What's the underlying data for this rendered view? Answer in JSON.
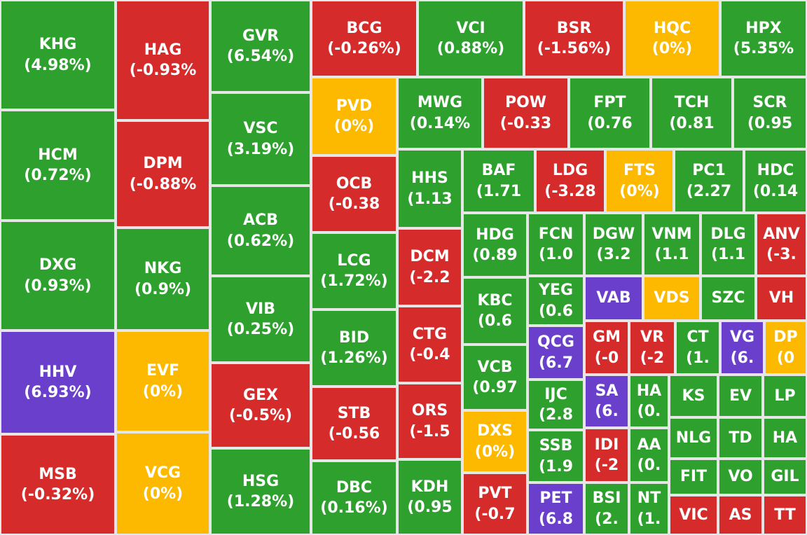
{
  "colors": {
    "up": "#2ea02e",
    "down": "#d62b2b",
    "flat": "#fcb900",
    "ceiling": "#6a3fcc"
  },
  "chart_data": {
    "type": "treemap",
    "items": [
      {
        "ticker": "KHG",
        "label": "(4.98%)",
        "change": 4.98,
        "status": "up"
      },
      {
        "ticker": "HCM",
        "label": "(0.72%)",
        "change": 0.72,
        "status": "up"
      },
      {
        "ticker": "DXG",
        "label": "(0.93%)",
        "change": 0.93,
        "status": "up"
      },
      {
        "ticker": "HHV",
        "label": "(6.93%)",
        "change": 6.93,
        "status": "ceiling"
      },
      {
        "ticker": "MSB",
        "label": "(-0.32%)",
        "change": -0.32,
        "status": "down"
      },
      {
        "ticker": "HAG",
        "label": "(-0.93%",
        "change": -0.93,
        "status": "down"
      },
      {
        "ticker": "DPM",
        "label": "(-0.88%",
        "change": -0.88,
        "status": "down"
      },
      {
        "ticker": "NKG",
        "label": "(0.9%)",
        "change": 0.9,
        "status": "up"
      },
      {
        "ticker": "EVF",
        "label": "(0%)",
        "change": 0,
        "status": "flat"
      },
      {
        "ticker": "VCG",
        "label": "(0%)",
        "change": 0,
        "status": "flat"
      },
      {
        "ticker": "GVR",
        "label": "(6.54%)",
        "change": 6.54,
        "status": "up"
      },
      {
        "ticker": "VSC",
        "label": "(3.19%)",
        "change": 3.19,
        "status": "up"
      },
      {
        "ticker": "ACB",
        "label": "(0.62%)",
        "change": 0.62,
        "status": "up"
      },
      {
        "ticker": "VIB",
        "label": "(0.25%)",
        "change": 0.25,
        "status": "up"
      },
      {
        "ticker": "GEX",
        "label": "(-0.5%)",
        "change": -0.5,
        "status": "down"
      },
      {
        "ticker": "HSG",
        "label": "(1.28%)",
        "change": 1.28,
        "status": "up"
      },
      {
        "ticker": "BCG",
        "label": "(-0.26%)",
        "change": -0.26,
        "status": "down"
      },
      {
        "ticker": "VCI",
        "label": "(0.88%)",
        "change": 0.88,
        "status": "up"
      },
      {
        "ticker": "BSR",
        "label": "(-1.56%)",
        "change": -1.56,
        "status": "down"
      },
      {
        "ticker": "HQC",
        "label": "(0%)",
        "change": 0,
        "status": "flat"
      },
      {
        "ticker": "HPX",
        "label": "(5.35%",
        "change": 5.35,
        "status": "up"
      },
      {
        "ticker": "PVD",
        "label": "(0%)",
        "change": 0,
        "status": "flat"
      },
      {
        "ticker": "OCB",
        "label": "(-0.38",
        "change": -0.38,
        "status": "down"
      },
      {
        "ticker": "LCG",
        "label": "(1.72%)",
        "change": 1.72,
        "status": "up"
      },
      {
        "ticker": "BID",
        "label": "(1.26%)",
        "change": 1.26,
        "status": "up"
      },
      {
        "ticker": "STB",
        "label": "(-0.56",
        "change": -0.56,
        "status": "down"
      },
      {
        "ticker": "DBC",
        "label": "(0.16%)",
        "change": 0.16,
        "status": "up"
      },
      {
        "ticker": "MWG",
        "label": "(0.14%",
        "change": 0.14,
        "status": "up"
      },
      {
        "ticker": "POW",
        "label": "(-0.33",
        "change": -0.33,
        "status": "down"
      },
      {
        "ticker": "FPT",
        "label": "(0.76",
        "change": 0.76,
        "status": "up"
      },
      {
        "ticker": "TCH",
        "label": "(0.81",
        "change": 0.81,
        "status": "up"
      },
      {
        "ticker": "SCR",
        "label": "(0.95",
        "change": 0.95,
        "status": "up"
      },
      {
        "ticker": "HHS",
        "label": "(1.13",
        "change": 1.13,
        "status": "up"
      },
      {
        "ticker": "DCM",
        "label": "(-2.2",
        "change": -2.2,
        "status": "down"
      },
      {
        "ticker": "CTG",
        "label": "(-0.4",
        "change": -0.4,
        "status": "down"
      },
      {
        "ticker": "ORS",
        "label": "(-1.5",
        "change": -1.5,
        "status": "down"
      },
      {
        "ticker": "KDH",
        "label": "(0.95",
        "change": 0.95,
        "status": "up"
      },
      {
        "ticker": "BAF",
        "label": "(1.71",
        "change": 1.71,
        "status": "up"
      },
      {
        "ticker": "LDG",
        "label": "(-3.28",
        "change": -3.28,
        "status": "down"
      },
      {
        "ticker": "FTS",
        "label": "(0%)",
        "change": 0,
        "status": "flat"
      },
      {
        "ticker": "PC1",
        "label": "(2.27",
        "change": 2.27,
        "status": "up"
      },
      {
        "ticker": "HDC",
        "label": "(0.14",
        "change": 0.14,
        "status": "up"
      },
      {
        "ticker": "HDG",
        "label": "(0.89",
        "change": 0.89,
        "status": "up"
      },
      {
        "ticker": "KBC",
        "label": "(0.6",
        "change": 0.6,
        "status": "up"
      },
      {
        "ticker": "VCB",
        "label": "(0.97",
        "change": 0.97,
        "status": "up"
      },
      {
        "ticker": "DXS",
        "label": "(0%)",
        "change": 0,
        "status": "flat"
      },
      {
        "ticker": "PVT",
        "label": "(-0.7",
        "change": -0.7,
        "status": "down"
      },
      {
        "ticker": "FCN",
        "label": "(1.0",
        "change": 1.0,
        "status": "up"
      },
      {
        "ticker": "DGW",
        "label": "(3.2",
        "change": 3.2,
        "status": "up"
      },
      {
        "ticker": "VNM",
        "label": "(1.1",
        "change": 1.1,
        "status": "up"
      },
      {
        "ticker": "DLG",
        "label": "(1.1",
        "change": 1.1,
        "status": "up"
      },
      {
        "ticker": "ANV",
        "label": "(-3.",
        "change": -3,
        "status": "down"
      },
      {
        "ticker": "YEG",
        "label": "(0.6",
        "change": 0.6,
        "status": "up"
      },
      {
        "ticker": "VAB",
        "label": "",
        "status": "ceiling"
      },
      {
        "ticker": "VDS",
        "label": "",
        "status": "flat"
      },
      {
        "ticker": "SZC",
        "label": "",
        "status": "up"
      },
      {
        "ticker": "VH",
        "label": "",
        "status": "down"
      },
      {
        "ticker": "QCG",
        "label": "(6.7",
        "change": 6.7,
        "status": "ceiling"
      },
      {
        "ticker": "GM",
        "label": "(-0",
        "change": 0,
        "status": "down"
      },
      {
        "ticker": "VR",
        "label": "(-2",
        "change": -2,
        "status": "down"
      },
      {
        "ticker": "CT",
        "label": "(1.",
        "change": 1,
        "status": "up"
      },
      {
        "ticker": "VG",
        "label": "(6.",
        "change": 6,
        "status": "ceiling"
      },
      {
        "ticker": "DP",
        "label": "(0",
        "change": 0,
        "status": "flat"
      },
      {
        "ticker": "IJC",
        "label": "(2.8",
        "change": 2.8,
        "status": "up"
      },
      {
        "ticker": "SA",
        "label": "(6.",
        "change": 6,
        "status": "ceiling"
      },
      {
        "ticker": "HA",
        "label": "(0.",
        "change": 0,
        "status": "up"
      },
      {
        "ticker": "KS",
        "label": "",
        "status": "up"
      },
      {
        "ticker": "EV",
        "label": "",
        "status": "up"
      },
      {
        "ticker": "LP",
        "label": "",
        "status": "up"
      },
      {
        "ticker": "SSB",
        "label": "(1.9",
        "change": 1.9,
        "status": "up"
      },
      {
        "ticker": "IDI",
        "label": "(-2",
        "change": -2,
        "status": "down"
      },
      {
        "ticker": "AA",
        "label": "(0.",
        "change": 0,
        "status": "up"
      },
      {
        "ticker": "NLG",
        "label": "",
        "status": "up"
      },
      {
        "ticker": "TD",
        "label": "",
        "status": "up"
      },
      {
        "ticker": "HA",
        "label": "",
        "status": "up"
      },
      {
        "ticker": "FIT",
        "label": "",
        "status": "up"
      },
      {
        "ticker": "VO",
        "label": "",
        "status": "up"
      },
      {
        "ticker": "GIL",
        "label": "",
        "status": "up"
      },
      {
        "ticker": "PET",
        "label": "(6.8",
        "change": 6.8,
        "status": "ceiling"
      },
      {
        "ticker": "BSI",
        "label": "(2.",
        "change": 2,
        "status": "up"
      },
      {
        "ticker": "NT",
        "label": "(1.",
        "change": 1,
        "status": "up"
      },
      {
        "ticker": "VIC",
        "label": "",
        "status": "down"
      },
      {
        "ticker": "AS",
        "label": "",
        "status": "down"
      },
      {
        "ticker": "TT",
        "label": "",
        "status": "down"
      }
    ]
  }
}
